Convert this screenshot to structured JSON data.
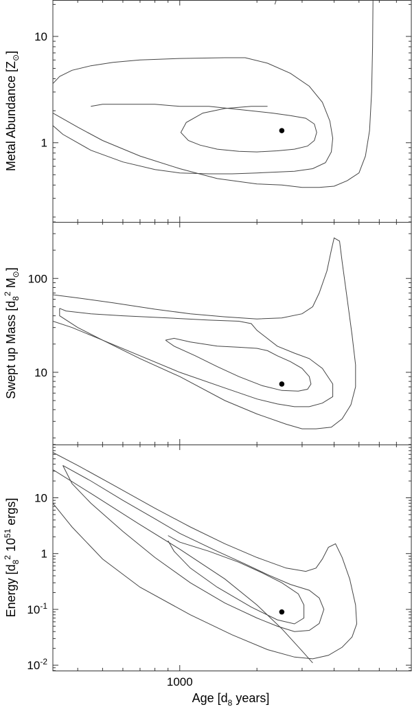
{
  "chart_data": [
    {
      "type": "line",
      "ylabel_text": "Metal Abundance [Z",
      "ylabel_sub": "⊙",
      "ylabel_close": "]",
      "yscale": "log",
      "ylim": [
        0.18,
        22
      ],
      "xscale": "log",
      "xlim": [
        320,
        8000
      ],
      "y_ticks": [
        {
          "value": 1,
          "label": "1"
        },
        {
          "value": 10,
          "label": "10"
        }
      ],
      "best_fit": {
        "x": 2500,
        "y": 1.3
      },
      "contours": [
        [
          [
            450,
            2.2
          ],
          [
            500,
            2.3
          ],
          [
            600,
            2.3
          ],
          [
            800,
            2.3
          ],
          [
            1000,
            2.2
          ],
          [
            1300,
            2.2
          ],
          [
            1900,
            2.0
          ],
          [
            2300,
            1.9
          ],
          [
            2700,
            1.8
          ],
          [
            3100,
            1.7
          ],
          [
            3350,
            1.5
          ],
          [
            3420,
            1.25
          ],
          [
            3350,
            1.05
          ],
          [
            3150,
            0.93
          ],
          [
            2800,
            0.87
          ],
          [
            2400,
            0.84
          ],
          [
            2000,
            0.82
          ],
          [
            1700,
            0.83
          ],
          [
            1400,
            0.87
          ],
          [
            1200,
            0.95
          ],
          [
            1080,
            1.05
          ],
          [
            1010,
            1.25
          ],
          [
            1060,
            1.55
          ],
          [
            1230,
            1.9
          ],
          [
            1500,
            2.1
          ],
          [
            1900,
            2.2
          ],
          [
            2200,
            2.2
          ]
        ],
        [
          [
            320,
            3.6
          ],
          [
            340,
            4.2
          ],
          [
            380,
            4.8
          ],
          [
            450,
            5.3
          ],
          [
            550,
            5.7
          ],
          [
            700,
            6.0
          ],
          [
            1000,
            6.2
          ],
          [
            1500,
            6.3
          ],
          [
            1800,
            6.3
          ],
          [
            2200,
            5.6
          ],
          [
            2700,
            4.5
          ],
          [
            3200,
            3.4
          ],
          [
            3600,
            2.4
          ],
          [
            3850,
            1.6
          ],
          [
            3950,
            1.1
          ],
          [
            3900,
            0.82
          ],
          [
            3700,
            0.65
          ],
          [
            3300,
            0.57
          ],
          [
            2800,
            0.54
          ],
          [
            2400,
            0.53
          ],
          [
            2000,
            0.52
          ],
          [
            1600,
            0.51
          ],
          [
            1300,
            0.51
          ],
          [
            1000,
            0.52
          ],
          [
            800,
            0.56
          ],
          [
            600,
            0.66
          ],
          [
            450,
            0.85
          ],
          [
            350,
            1.2
          ],
          [
            320,
            1.45
          ]
        ],
        [
          [
            320,
            1.9
          ],
          [
            400,
            1.4
          ],
          [
            500,
            1.05
          ],
          [
            700,
            0.75
          ],
          [
            1000,
            0.57
          ],
          [
            1400,
            0.46
          ],
          [
            2000,
            0.41
          ],
          [
            2500,
            0.4
          ],
          [
            3000,
            0.38
          ],
          [
            3500,
            0.38
          ],
          [
            4000,
            0.39
          ],
          [
            4500,
            0.44
          ],
          [
            5000,
            0.52
          ],
          [
            5300,
            0.75
          ],
          [
            5500,
            1.3
          ],
          [
            5600,
            3
          ],
          [
            5650,
            8
          ],
          [
            5670,
            22
          ]
        ],
        [
          [
            2350,
            20
          ],
          [
            2380,
            22
          ]
        ]
      ]
    },
    {
      "type": "line",
      "ylabel_text": "Swept up Mass [d",
      "ylabel_sub1": "8",
      "ylabel_sup": "2",
      "ylabel_mid": " M",
      "ylabel_sub2": "⊙",
      "ylabel_close": "]",
      "yscale": "log",
      "ylim": [
        1.7,
        400
      ],
      "xscale": "log",
      "xlim": [
        320,
        8000
      ],
      "y_ticks": [
        {
          "value": 10,
          "label": "10"
        },
        {
          "value": 100,
          "label": "100"
        }
      ],
      "best_fit": {
        "x": 2500,
        "y": 7.5
      },
      "contours": [
        [
          [
            880,
            22
          ],
          [
            950,
            23
          ],
          [
            1100,
            21
          ],
          [
            1400,
            19
          ],
          [
            1700,
            18.5
          ],
          [
            2000,
            18
          ],
          [
            2200,
            17
          ],
          [
            2400,
            15
          ],
          [
            2700,
            13
          ],
          [
            3000,
            11
          ],
          [
            3200,
            9
          ],
          [
            3250,
            7.5
          ],
          [
            3150,
            6.6
          ],
          [
            2900,
            6.3
          ],
          [
            2500,
            6.4
          ],
          [
            2100,
            7.2
          ],
          [
            1700,
            9
          ],
          [
            1400,
            11.5
          ],
          [
            1150,
            15
          ],
          [
            950,
            19
          ],
          [
            880,
            22
          ]
        ],
        [
          [
            340,
            48
          ],
          [
            360,
            45
          ],
          [
            450,
            42
          ],
          [
            600,
            40
          ],
          [
            900,
            38
          ],
          [
            1300,
            36
          ],
          [
            1700,
            35
          ],
          [
            1900,
            33
          ],
          [
            2000,
            28
          ],
          [
            2150,
            24
          ],
          [
            2400,
            19
          ],
          [
            2800,
            16
          ],
          [
            3200,
            14
          ],
          [
            3600,
            11
          ],
          [
            3950,
            7.5
          ],
          [
            3950,
            5.5
          ],
          [
            3600,
            4.7
          ],
          [
            3200,
            4.3
          ],
          [
            2800,
            4.3
          ],
          [
            2400,
            4.6
          ],
          [
            2000,
            5.2
          ],
          [
            1500,
            6.8
          ],
          [
            1000,
            10
          ],
          [
            700,
            15
          ],
          [
            500,
            22
          ],
          [
            400,
            30
          ],
          [
            340,
            40
          ],
          [
            340,
            48
          ]
        ],
        [
          [
            320,
            67
          ],
          [
            400,
            62
          ],
          [
            550,
            55
          ],
          [
            800,
            47
          ],
          [
            1100,
            42
          ],
          [
            1500,
            39
          ],
          [
            2000,
            37
          ],
          [
            2500,
            38
          ],
          [
            3000,
            42
          ],
          [
            3300,
            50
          ],
          [
            3500,
            70
          ],
          [
            3750,
            120
          ],
          [
            3900,
            200
          ],
          [
            4000,
            270
          ],
          [
            4200,
            250
          ],
          [
            4300,
            150
          ],
          [
            4500,
            60
          ],
          [
            4700,
            25
          ],
          [
            4850,
            12
          ],
          [
            4850,
            7
          ],
          [
            4650,
            4.5
          ],
          [
            4300,
            3.2
          ],
          [
            3900,
            2.6
          ],
          [
            3400,
            2.5
          ],
          [
            3000,
            2.5
          ],
          [
            2600,
            2.8
          ],
          [
            2000,
            3.6
          ],
          [
            1500,
            5
          ],
          [
            1000,
            9
          ],
          [
            700,
            14
          ],
          [
            500,
            22
          ],
          [
            380,
            30
          ],
          [
            320,
            35
          ]
        ]
      ]
    },
    {
      "type": "line",
      "ylabel_text": "Energy [d",
      "ylabel_sub1": "8",
      "ylabel_sup1": "2",
      "ylabel_mid": " 10",
      "ylabel_sup2": "51",
      "ylabel_close": " ergs]",
      "xlabel_text": "Age [d",
      "xlabel_sub": "8",
      "xlabel_close": " years]",
      "x_ticks": [
        {
          "value": 1000,
          "label": "1000"
        }
      ],
      "yscale": "log",
      "ylim": [
        0.008,
        90
      ],
      "xscale": "log",
      "xlim": [
        320,
        8000
      ],
      "y_ticks": [
        {
          "value": 0.01,
          "label": "10",
          "exp": "-2"
        },
        {
          "value": 0.1,
          "label": "10",
          "exp": "-1"
        },
        {
          "value": 1,
          "label": "1"
        },
        {
          "value": 10,
          "label": "10"
        }
      ],
      "best_fit": {
        "x": 2500,
        "y": 0.09
      },
      "contours": [
        [
          [
            900,
            2.1
          ],
          [
            1000,
            1.6
          ],
          [
            1300,
            1.1
          ],
          [
            1700,
            0.7
          ],
          [
            2100,
            0.45
          ],
          [
            2500,
            0.3
          ],
          [
            2900,
            0.19
          ],
          [
            3050,
            0.12
          ],
          [
            3050,
            0.07
          ],
          [
            2800,
            0.055
          ],
          [
            2400,
            0.065
          ],
          [
            1900,
            0.11
          ],
          [
            1400,
            0.25
          ],
          [
            1100,
            0.55
          ],
          [
            950,
            1.1
          ],
          [
            900,
            1.7
          ]
        ],
        [
          [
            350,
            38
          ],
          [
            450,
            20
          ],
          [
            600,
            9
          ],
          [
            800,
            4.2
          ],
          [
            1000,
            2.3
          ],
          [
            1400,
            1.1
          ],
          [
            1800,
            0.65
          ],
          [
            2200,
            0.42
          ],
          [
            2700,
            0.28
          ],
          [
            3200,
            0.22
          ],
          [
            3500,
            0.16
          ],
          [
            3650,
            0.1
          ],
          [
            3500,
            0.056
          ],
          [
            3200,
            0.042
          ],
          [
            2800,
            0.04
          ],
          [
            2400,
            0.05
          ],
          [
            2000,
            0.07
          ],
          [
            1500,
            0.13
          ],
          [
            1100,
            0.3
          ],
          [
            800,
            0.85
          ],
          [
            600,
            2.5
          ],
          [
            450,
            8
          ],
          [
            380,
            18
          ],
          [
            350,
            38
          ]
        ],
        [
          [
            320,
            65
          ],
          [
            400,
            38
          ],
          [
            550,
            17
          ],
          [
            800,
            6.5
          ],
          [
            1100,
            3
          ],
          [
            1500,
            1.5
          ],
          [
            2000,
            0.85
          ],
          [
            2600,
            0.55
          ],
          [
            3100,
            0.48
          ],
          [
            3400,
            0.55
          ],
          [
            3600,
            0.8
          ],
          [
            3800,
            1.3
          ],
          [
            4050,
            1.5
          ],
          [
            4300,
            0.85
          ],
          [
            4600,
            0.35
          ],
          [
            4850,
            0.12
          ],
          [
            4900,
            0.055
          ],
          [
            4700,
            0.032
          ],
          [
            4300,
            0.021
          ],
          [
            3800,
            0.015
          ],
          [
            3300,
            0.013
          ],
          [
            2800,
            0.014
          ],
          [
            2200,
            0.019
          ],
          [
            1600,
            0.035
          ],
          [
            1100,
            0.08
          ],
          [
            700,
            0.25
          ],
          [
            500,
            0.8
          ],
          [
            380,
            3
          ],
          [
            320,
            8
          ]
        ],
        [
          [
            320,
            32
          ],
          [
            450,
            12
          ],
          [
            700,
            3.3
          ],
          [
            1000,
            1.2
          ],
          [
            1500,
            0.35
          ],
          [
            2000,
            0.12
          ],
          [
            2500,
            0.045
          ],
          [
            3000,
            0.018
          ],
          [
            3300,
            0.011
          ]
        ]
      ]
    }
  ]
}
